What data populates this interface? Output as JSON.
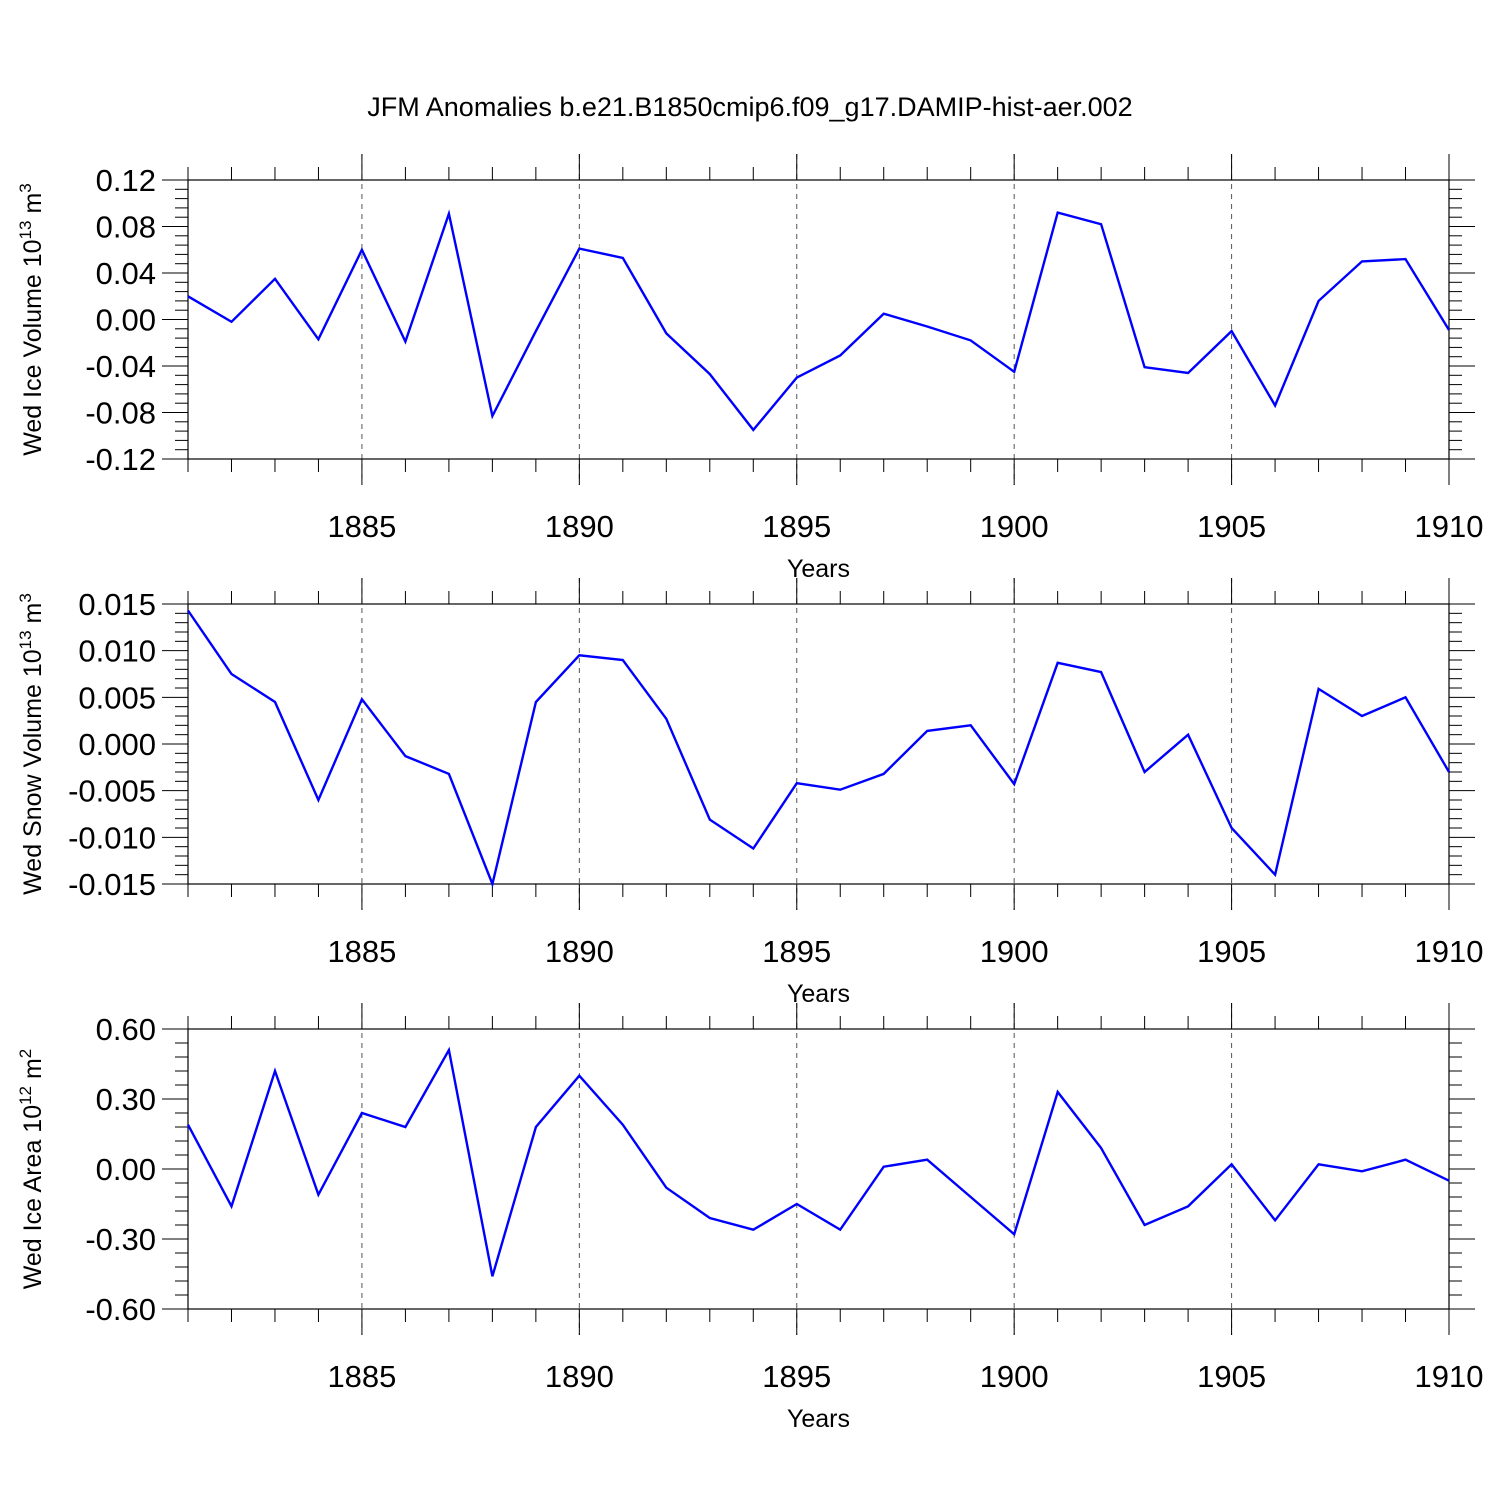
{
  "title": "JFM Anomalies b.e21.B1850cmip6.f09_g17.DAMIP-hist-aer.002",
  "colors": {
    "line": "#0000ff",
    "axis": "#000000",
    "grid": "#555555"
  },
  "chart_data": [
    {
      "type": "line",
      "ylabel": "Wed Ice Volume 10^13 m^3",
      "ylabel_parts": {
        "text": "Wed Ice Volume 10",
        "exp": "13",
        "unit": " m",
        "unit_exp": "3"
      },
      "xlabel": "Years",
      "xlim": [
        1881,
        1910
      ],
      "ylim": [
        -0.12,
        0.12
      ],
      "yticks": [
        "0.12",
        "0.08",
        "0.04",
        "0.00",
        "-0.04",
        "-0.08",
        "-0.12"
      ],
      "yticks_values": [
        0.12,
        0.08,
        0.04,
        0.0,
        -0.04,
        -0.08,
        -0.12
      ],
      "xticks": [
        "1885",
        "1890",
        "1895",
        "1900",
        "1905",
        "1910"
      ],
      "xticks_values": [
        1885,
        1890,
        1895,
        1900,
        1905,
        1910
      ],
      "grid_x": true,
      "series": [
        {
          "name": "Wed Ice Volume",
          "x": [
            1881,
            1882,
            1883,
            1884,
            1885,
            1886,
            1887,
            1888,
            1889,
            1890,
            1891,
            1892,
            1893,
            1894,
            1895,
            1896,
            1897,
            1898,
            1899,
            1900,
            1901,
            1902,
            1903,
            1904,
            1905,
            1906,
            1907,
            1908,
            1909,
            1910
          ],
          "values": [
            0.02,
            -0.002,
            0.035,
            -0.017,
            0.06,
            -0.019,
            0.091,
            -0.083,
            -0.01,
            0.061,
            0.053,
            -0.012,
            -0.047,
            -0.095,
            -0.05,
            -0.031,
            0.005,
            -0.006,
            -0.018,
            -0.045,
            0.092,
            0.082,
            -0.041,
            -0.046,
            -0.01,
            -0.074,
            0.016,
            0.05,
            0.052,
            -0.009
          ]
        }
      ]
    },
    {
      "type": "line",
      "ylabel": "Wed Snow Volume 10^13 m^3",
      "ylabel_parts": {
        "text": "Wed Snow Volume 10",
        "exp": "13",
        "unit": " m",
        "unit_exp": "3"
      },
      "xlabel": "Years",
      "xlim": [
        1881,
        1910
      ],
      "ylim": [
        -0.015,
        0.015
      ],
      "yticks": [
        "0.015",
        "0.010",
        "0.005",
        "0.000",
        "-0.005",
        "-0.010",
        "-0.015"
      ],
      "yticks_values": [
        0.015,
        0.01,
        0.005,
        0.0,
        -0.005,
        -0.01,
        -0.015
      ],
      "xticks": [
        "1885",
        "1890",
        "1895",
        "1900",
        "1905",
        "1910"
      ],
      "xticks_values": [
        1885,
        1890,
        1895,
        1900,
        1905,
        1910
      ],
      "grid_x": true,
      "series": [
        {
          "name": "Wed Snow Volume",
          "x": [
            1881,
            1882,
            1883,
            1884,
            1885,
            1886,
            1887,
            1888,
            1889,
            1890,
            1891,
            1892,
            1893,
            1894,
            1895,
            1896,
            1897,
            1898,
            1899,
            1900,
            1901,
            1902,
            1903,
            1904,
            1905,
            1906,
            1907,
            1908,
            1909,
            1910
          ],
          "values": [
            0.0143,
            0.0075,
            0.0045,
            -0.006,
            0.0048,
            -0.0013,
            -0.0032,
            -0.015,
            0.0045,
            0.0095,
            0.009,
            0.0027,
            -0.0081,
            -0.0112,
            -0.0042,
            -0.0049,
            -0.0032,
            0.0014,
            0.002,
            -0.0043,
            0.0087,
            0.0077,
            -0.003,
            0.001,
            -0.009,
            -0.014,
            0.0059,
            0.003,
            0.005,
            -0.003
          ]
        }
      ]
    },
    {
      "type": "line",
      "ylabel": "Wed Ice Area 10^12 m^2",
      "ylabel_parts": {
        "text": "Wed Ice Area 10",
        "exp": "12",
        "unit": " m",
        "unit_exp": "2"
      },
      "xlabel": "Years",
      "xlim": [
        1881,
        1910
      ],
      "ylim": [
        -0.6,
        0.6
      ],
      "yticks": [
        "0.60",
        "0.30",
        "0.00",
        "-0.30",
        "-0.60"
      ],
      "yticks_values": [
        0.6,
        0.3,
        0.0,
        -0.3,
        -0.6
      ],
      "xticks": [
        "1885",
        "1890",
        "1895",
        "1900",
        "1905",
        "1910"
      ],
      "xticks_values": [
        1885,
        1890,
        1895,
        1900,
        1905,
        1910
      ],
      "grid_x": true,
      "series": [
        {
          "name": "Wed Ice Area",
          "x": [
            1881,
            1882,
            1883,
            1884,
            1885,
            1886,
            1887,
            1888,
            1889,
            1890,
            1891,
            1892,
            1893,
            1894,
            1895,
            1896,
            1897,
            1898,
            1899,
            1900,
            1901,
            1902,
            1903,
            1904,
            1905,
            1906,
            1907,
            1908,
            1909,
            1910
          ],
          "values": [
            0.19,
            -0.16,
            0.42,
            -0.11,
            0.24,
            0.18,
            0.51,
            -0.46,
            0.18,
            0.4,
            0.19,
            -0.08,
            -0.21,
            -0.26,
            -0.15,
            -0.26,
            0.01,
            0.04,
            -0.12,
            -0.28,
            0.33,
            0.09,
            -0.24,
            -0.16,
            0.02,
            -0.22,
            0.02,
            -0.01,
            0.04,
            -0.05
          ]
        }
      ]
    }
  ]
}
